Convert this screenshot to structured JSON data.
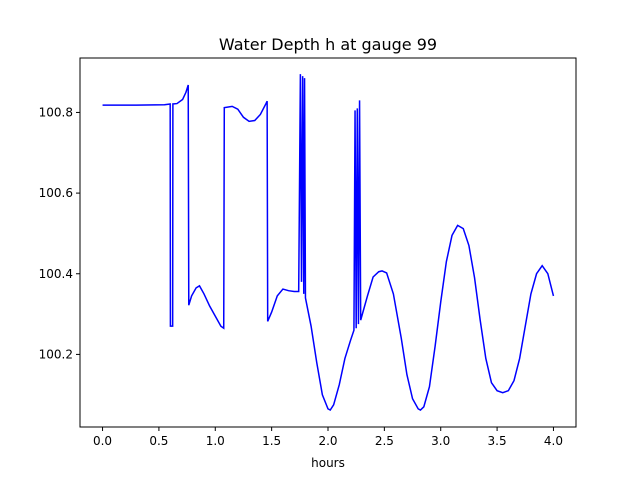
{
  "chart_data": {
    "type": "line",
    "title": "Water Depth h at gauge 99",
    "xlabel": "hours",
    "ylabel": "",
    "xlim": [
      -0.2,
      4.2
    ],
    "ylim": [
      100.02,
      100.935
    ],
    "xticks": [
      0.0,
      0.5,
      1.0,
      1.5,
      2.0,
      2.5,
      3.0,
      3.5,
      4.0
    ],
    "xtick_labels": [
      "0.0",
      "0.5",
      "1.0",
      "1.5",
      "2.0",
      "2.5",
      "3.0",
      "3.5",
      "4.0"
    ],
    "yticks": [
      100.2,
      100.4,
      100.6,
      100.8
    ],
    "ytick_labels": [
      "100.2",
      "100.4",
      "100.6",
      "100.8"
    ],
    "grid": false,
    "series": [
      {
        "color": "#0000ff",
        "points": [
          [
            0.0,
            100.818
          ],
          [
            0.3,
            100.818
          ],
          [
            0.55,
            100.819
          ],
          [
            0.6,
            100.821
          ],
          [
            0.602,
            100.27
          ],
          [
            0.622,
            100.27
          ],
          [
            0.624,
            100.821
          ],
          [
            0.66,
            100.822
          ],
          [
            0.71,
            100.832
          ],
          [
            0.74,
            100.85
          ],
          [
            0.76,
            100.868
          ],
          [
            0.765,
            100.322
          ],
          [
            0.79,
            100.345
          ],
          [
            0.83,
            100.365
          ],
          [
            0.86,
            100.37
          ],
          [
            0.9,
            100.35
          ],
          [
            0.95,
            100.32
          ],
          [
            1.0,
            100.295
          ],
          [
            1.05,
            100.27
          ],
          [
            1.075,
            100.265
          ],
          [
            1.08,
            100.812
          ],
          [
            1.15,
            100.815
          ],
          [
            1.2,
            100.808
          ],
          [
            1.25,
            100.788
          ],
          [
            1.3,
            100.778
          ],
          [
            1.35,
            100.78
          ],
          [
            1.4,
            100.795
          ],
          [
            1.45,
            100.822
          ],
          [
            1.46,
            100.828
          ],
          [
            1.465,
            100.282
          ],
          [
            1.5,
            100.305
          ],
          [
            1.55,
            100.345
          ],
          [
            1.6,
            100.362
          ],
          [
            1.65,
            100.358
          ],
          [
            1.7,
            100.356
          ],
          [
            1.74,
            100.356
          ],
          [
            1.755,
            100.895
          ],
          [
            1.765,
            100.38
          ],
          [
            1.775,
            100.89
          ],
          [
            1.785,
            100.35
          ],
          [
            1.792,
            100.885
          ],
          [
            1.8,
            100.34
          ],
          [
            1.85,
            100.27
          ],
          [
            1.9,
            100.18
          ],
          [
            1.95,
            100.1
          ],
          [
            2.0,
            100.065
          ],
          [
            2.02,
            100.062
          ],
          [
            2.05,
            100.075
          ],
          [
            2.1,
            100.125
          ],
          [
            2.15,
            100.19
          ],
          [
            2.2,
            100.235
          ],
          [
            2.23,
            100.26
          ],
          [
            2.24,
            100.805
          ],
          [
            2.25,
            100.265
          ],
          [
            2.26,
            100.81
          ],
          [
            2.27,
            100.275
          ],
          [
            2.28,
            100.83
          ],
          [
            2.29,
            100.285
          ],
          [
            2.35,
            100.345
          ],
          [
            2.4,
            100.392
          ],
          [
            2.45,
            100.405
          ],
          [
            2.48,
            100.407
          ],
          [
            2.52,
            100.402
          ],
          [
            2.58,
            100.35
          ],
          [
            2.65,
            100.24
          ],
          [
            2.7,
            100.15
          ],
          [
            2.75,
            100.09
          ],
          [
            2.8,
            100.065
          ],
          [
            2.82,
            100.062
          ],
          [
            2.85,
            100.07
          ],
          [
            2.9,
            100.12
          ],
          [
            2.95,
            100.22
          ],
          [
            3.0,
            100.33
          ],
          [
            3.05,
            100.43
          ],
          [
            3.1,
            100.495
          ],
          [
            3.15,
            100.52
          ],
          [
            3.2,
            100.512
          ],
          [
            3.25,
            100.47
          ],
          [
            3.3,
            100.39
          ],
          [
            3.35,
            100.285
          ],
          [
            3.4,
            100.19
          ],
          [
            3.45,
            100.13
          ],
          [
            3.5,
            100.11
          ],
          [
            3.55,
            100.105
          ],
          [
            3.6,
            100.11
          ],
          [
            3.65,
            100.135
          ],
          [
            3.7,
            100.19
          ],
          [
            3.75,
            100.27
          ],
          [
            3.8,
            100.35
          ],
          [
            3.85,
            100.4
          ],
          [
            3.9,
            100.42
          ],
          [
            3.95,
            100.4
          ],
          [
            4.0,
            100.345
          ]
        ]
      }
    ]
  }
}
